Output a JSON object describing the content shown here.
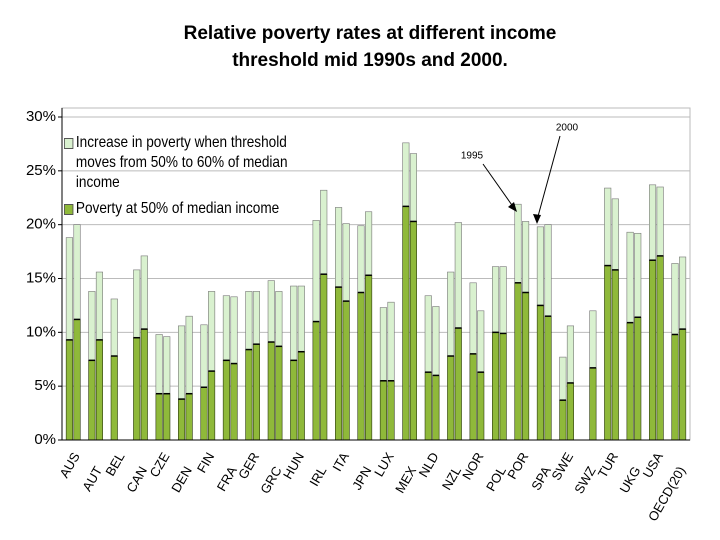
{
  "chart_data": {
    "type": "bar",
    "title": "Relative poverty rates at different income threshold mid 1990s and 2000.",
    "categories": [
      "AUS",
      "AUT",
      "BEL",
      "CAN",
      "CZE",
      "DEN",
      "FIN",
      "FRA",
      "GER",
      "GRC",
      "HUN",
      "IRL",
      "ITA",
      "JPN",
      "LUX",
      "MEX",
      "NLD",
      "NZL",
      "NOR",
      "POL",
      "POR",
      "SPA",
      "SWE",
      "SWZ",
      "TUR",
      "UKG",
      "USA",
      "OECD(20)"
    ],
    "series": [
      {
        "name": "Increase in poverty when threshold moves from 50% to 60% of median income",
        "color": "#d9f1cf",
        "values": [
          [
            9.5,
            8.8
          ],
          [
            6.4,
            6.3
          ],
          [
            5.3,
            null
          ],
          [
            6.3,
            6.8
          ],
          [
            5.5,
            5.3
          ],
          [
            6.8,
            7.2
          ],
          [
            5.8,
            7.4
          ],
          [
            6.0,
            6.2
          ],
          [
            5.4,
            4.9
          ],
          [
            5.7,
            5.1
          ],
          [
            6.9,
            6.1
          ],
          [
            9.4,
            7.8
          ],
          [
            7.4,
            7.2
          ],
          [
            6.2,
            5.9
          ],
          [
            6.8,
            7.3
          ],
          [
            5.9,
            6.3
          ],
          [
            7.1,
            6.4
          ],
          [
            7.8,
            9.8
          ],
          [
            6.6,
            5.7
          ],
          [
            6.1,
            6.2
          ],
          [
            7.3,
            6.6
          ],
          [
            7.3,
            8.5
          ],
          [
            4.0,
            5.3
          ],
          [
            null,
            5.3
          ],
          [
            7.2,
            6.6
          ],
          [
            8.4,
            7.8
          ],
          [
            7.0,
            6.4
          ],
          [
            6.6,
            6.7
          ]
        ]
      },
      {
        "name": "Poverty at 50% of median income",
        "color": "#8fb93a",
        "values": [
          [
            9.3,
            11.2
          ],
          [
            7.4,
            9.3
          ],
          [
            7.8,
            null
          ],
          [
            9.5,
            10.3
          ],
          [
            4.3,
            4.3
          ],
          [
            3.8,
            4.3
          ],
          [
            4.9,
            6.4
          ],
          [
            7.4,
            7.1
          ],
          [
            8.4,
            8.9
          ],
          [
            9.1,
            8.7
          ],
          [
            7.4,
            8.2
          ],
          [
            11.0,
            15.4
          ],
          [
            14.2,
            12.9
          ],
          [
            13.7,
            15.3
          ],
          [
            5.5,
            5.5
          ],
          [
            21.7,
            20.3
          ],
          [
            6.3,
            6.0
          ],
          [
            7.8,
            10.4
          ],
          [
            8.0,
            6.3
          ],
          [
            10.0,
            9.9
          ],
          [
            14.6,
            13.7
          ],
          [
            12.5,
            11.5
          ],
          [
            3.7,
            5.3
          ],
          [
            null,
            6.7
          ],
          [
            16.2,
            15.8
          ],
          [
            10.9,
            11.4
          ],
          [
            16.7,
            17.1
          ],
          [
            9.8,
            10.3
          ]
        ]
      }
    ],
    "annotations": [
      "1995",
      "2000"
    ],
    "ylim": [
      0,
      30
    ],
    "yticks": [
      {
        "value": 0,
        "label": "0%"
      },
      {
        "value": 5,
        "label": "5%"
      },
      {
        "value": 10,
        "label": "10%"
      },
      {
        "value": 15,
        "label": "15%"
      },
      {
        "value": 20,
        "label": "20%"
      },
      {
        "value": 25,
        "label": "25%"
      },
      {
        "value": 30,
        "label": "30%"
      }
    ],
    "grid": true
  }
}
